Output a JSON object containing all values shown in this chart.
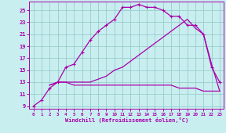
{
  "xlabel": "Windchill (Refroidissement éolien,°C)",
  "xlim": [
    -0.5,
    23.5
  ],
  "ylim": [
    8.5,
    26.5
  ],
  "xticks": [
    0,
    1,
    2,
    3,
    4,
    5,
    6,
    7,
    8,
    9,
    10,
    11,
    12,
    13,
    14,
    15,
    16,
    17,
    18,
    19,
    20,
    21,
    22,
    23
  ],
  "yticks": [
    9,
    11,
    13,
    15,
    17,
    19,
    21,
    23,
    25
  ],
  "bg_color": "#c8eef0",
  "line_color": "#aa00aa",
  "grid_color": "#99cccc",
  "line1_x": [
    0,
    1,
    2,
    3,
    4,
    5,
    6,
    7,
    8,
    9,
    10,
    11,
    12,
    13,
    14,
    15,
    16,
    17,
    18,
    19,
    20,
    21,
    22,
    23
  ],
  "line1_y": [
    9,
    10,
    12,
    13,
    15.5,
    16,
    18,
    20,
    21.5,
    22.5,
    23.5,
    25.5,
    25.5,
    26,
    25.5,
    25.5,
    25,
    24,
    24,
    22.5,
    22.5,
    21,
    15.5,
    13
  ],
  "line2_x": [
    2,
    3,
    4,
    5,
    6,
    7,
    8,
    9,
    10,
    11,
    12,
    13,
    14,
    15,
    16,
    17,
    18,
    19,
    20,
    21,
    22,
    23
  ],
  "line2_y": [
    12.5,
    13,
    13,
    13,
    13,
    13,
    13.5,
    14,
    15,
    15.5,
    16.5,
    17.5,
    18.5,
    19.5,
    20.5,
    21.5,
    22.5,
    23.5,
    22,
    21,
    16,
    11.5
  ],
  "line3_x": [
    2,
    3,
    4,
    5,
    6,
    7,
    8,
    9,
    10,
    11,
    12,
    13,
    14,
    15,
    16,
    17,
    18,
    19,
    20,
    21,
    22,
    23
  ],
  "line3_y": [
    12.5,
    13,
    13,
    12.5,
    12.5,
    12.5,
    12.5,
    12.5,
    12.5,
    12.5,
    12.5,
    12.5,
    12.5,
    12.5,
    12.5,
    12.5,
    12,
    12,
    12,
    11.5,
    11.5,
    11.5
  ]
}
